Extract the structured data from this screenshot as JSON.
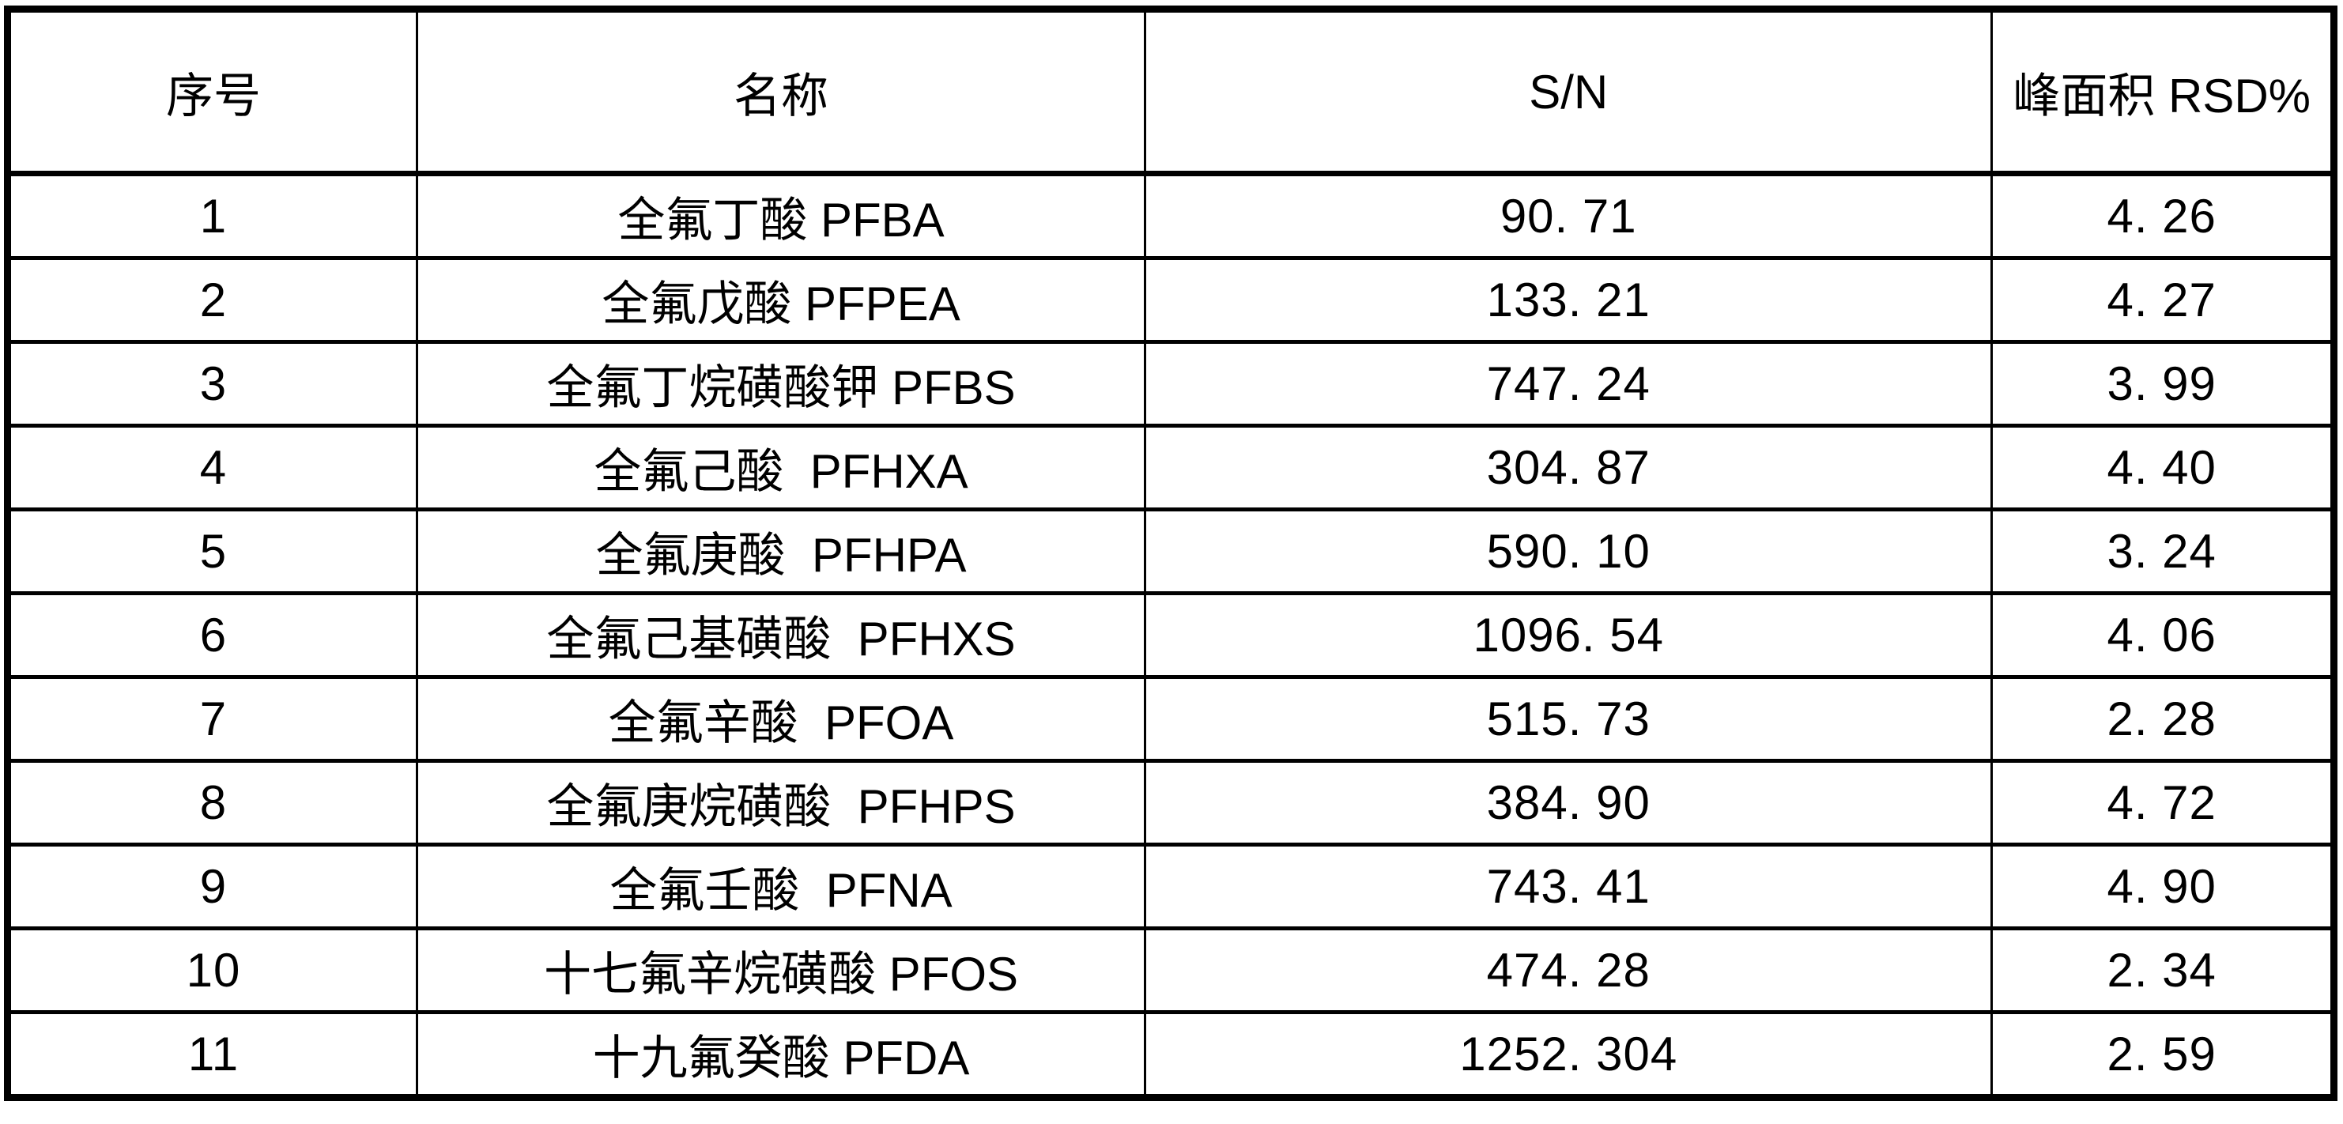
{
  "table": {
    "headers": {
      "no": "序号",
      "name": "名称",
      "sn": "S/N",
      "rsd": "峰面积 RSD%"
    },
    "rows": [
      {
        "no": "1",
        "name": "全氟丁酸 PFBA",
        "sn": "90. 71",
        "rsd": "4. 26"
      },
      {
        "no": "2",
        "name": "全氟戊酸 PFPEA",
        "sn": "133. 21",
        "rsd": "4. 27"
      },
      {
        "no": "3",
        "name": "全氟丁烷磺酸钾 PFBS",
        "sn": "747. 24",
        "rsd": "3. 99"
      },
      {
        "no": "4",
        "name": "全氟己酸  PFHXA",
        "sn": "304. 87",
        "rsd": "4. 40"
      },
      {
        "no": "5",
        "name": "全氟庚酸  PFHPA",
        "sn": "590. 10",
        "rsd": "3. 24"
      },
      {
        "no": "6",
        "name": "全氟己基磺酸  PFHXS",
        "sn": "1096. 54",
        "rsd": "4. 06"
      },
      {
        "no": "7",
        "name": "全氟辛酸  PFOA",
        "sn": "515. 73",
        "rsd": "2. 28"
      },
      {
        "no": "8",
        "name": "全氟庚烷磺酸  PFHPS",
        "sn": "384. 90",
        "rsd": "4. 72"
      },
      {
        "no": "9",
        "name": "全氟壬酸  PFNA",
        "sn": "743. 41",
        "rsd": "4. 90"
      },
      {
        "no": "10",
        "name": "十七氟辛烷磺酸 PFOS",
        "sn": "474. 28",
        "rsd": "2. 34"
      },
      {
        "no": "11",
        "name": "十九氟癸酸 PFDA",
        "sn": "1252. 304",
        "rsd": "2. 59"
      }
    ]
  }
}
